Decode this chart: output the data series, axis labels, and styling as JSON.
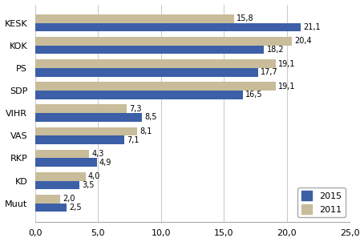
{
  "parties": [
    "KESK",
    "KOK",
    "PS",
    "SDP",
    "VIHR",
    "VAS",
    "RKP",
    "KD",
    "Muut"
  ],
  "values_2015": [
    21.1,
    18.2,
    17.7,
    16.5,
    8.5,
    7.1,
    4.9,
    3.5,
    2.5
  ],
  "values_2011": [
    15.8,
    20.4,
    19.1,
    19.1,
    7.3,
    8.1,
    4.3,
    4.0,
    2.0
  ],
  "color_2015": "#3c5fa8",
  "color_2011": "#c8bc9a",
  "xlim": [
    0,
    25
  ],
  "xticks": [
    0.0,
    5.0,
    10.0,
    15.0,
    20.0,
    25.0
  ],
  "xtick_labels": [
    "0,0",
    "5,0",
    "10,0",
    "15,0",
    "20,0",
    "25,0"
  ],
  "legend_2015": "2015",
  "legend_2011": "2011",
  "bar_height": 0.38,
  "label_fontsize": 7.0,
  "tick_fontsize": 8,
  "legend_fontsize": 8,
  "background_color": "#ffffff",
  "gridcolor": "#cccccc"
}
